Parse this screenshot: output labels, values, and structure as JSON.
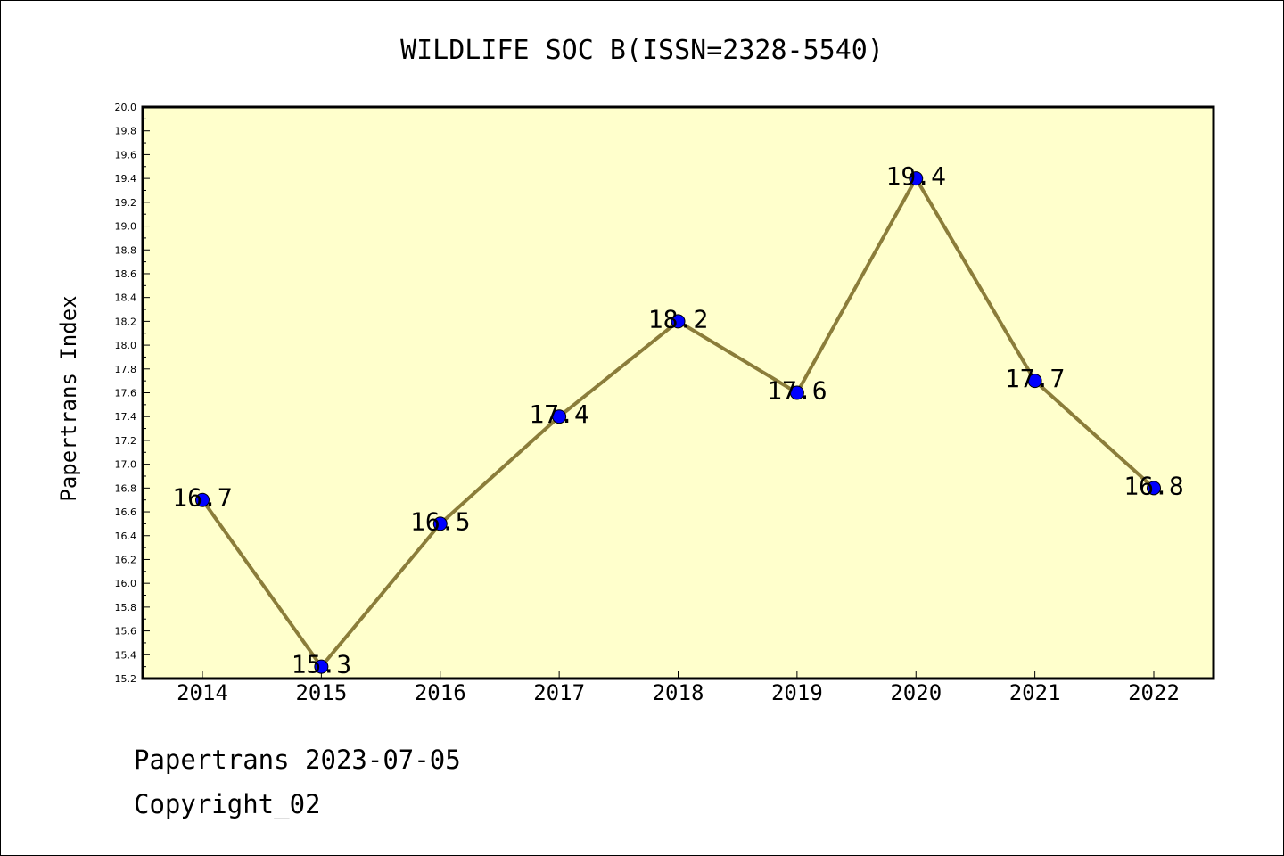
{
  "footer": {
    "line1": "Papertrans 2023-07-05",
    "line2": "Copyright_02"
  },
  "colors": {
    "plot_background": "#ffffcc",
    "line": "#8b7d3a",
    "marker": "#0000ff",
    "frame": "#000000"
  },
  "chart_data": {
    "type": "line",
    "title": "WILDLIFE SOC B(ISSN=2328-5540)",
    "xlabel": "",
    "ylabel": "Papertrans Index",
    "categories": [
      "2014",
      "2015",
      "2016",
      "2017",
      "2018",
      "2019",
      "2020",
      "2021",
      "2022"
    ],
    "series": [
      {
        "values": [
          16.7,
          15.3,
          16.5,
          17.4,
          18.2,
          17.6,
          19.4,
          17.7,
          16.8
        ]
      }
    ],
    "data_labels": [
      "16.7",
      "15.3",
      "16.5",
      "17.4",
      "18.2",
      "17.6",
      "19.4",
      "17.7",
      "16.8"
    ],
    "ylim": [
      15.2,
      20.0
    ],
    "yticks": [
      "15.2",
      "15.4",
      "15.6",
      "15.8",
      "16.0",
      "16.2",
      "16.4",
      "16.6",
      "16.8",
      "17.0",
      "17.2",
      "17.4",
      "17.6",
      "17.8",
      "18.0",
      "18.2",
      "18.4",
      "18.6",
      "18.8",
      "19.0",
      "19.2",
      "19.4",
      "19.6",
      "19.8",
      "20.0"
    ],
    "grid": false,
    "legend": "none"
  }
}
